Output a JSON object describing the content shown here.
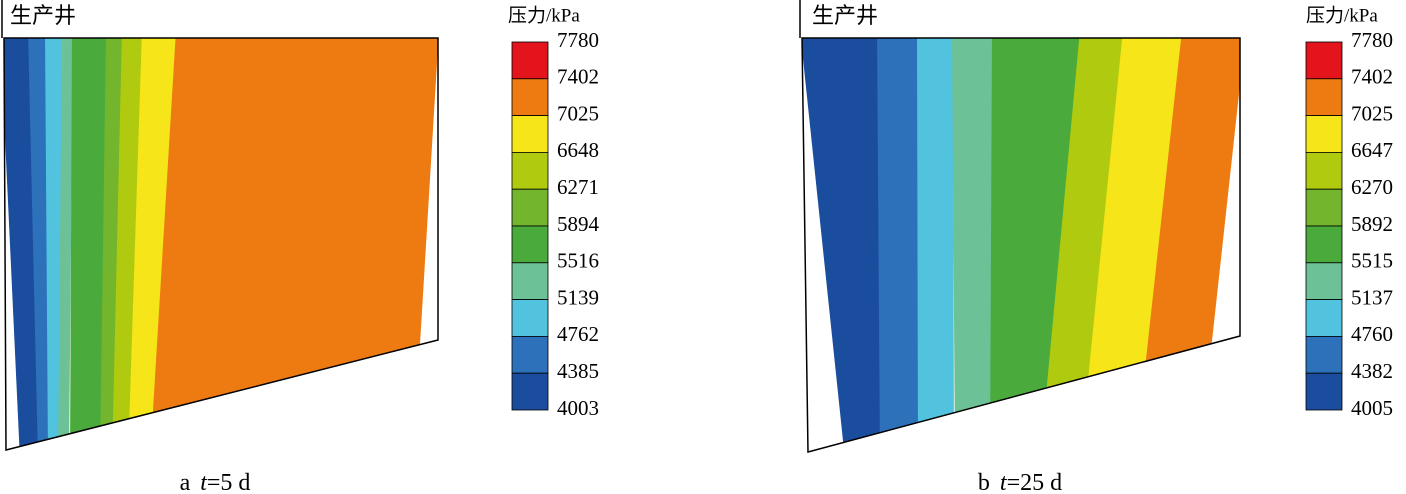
{
  "panels": [
    {
      "well_label": "生产井",
      "unit": "压力/kPa",
      "colorbar": {
        "labels": [
          7780,
          7402,
          7025,
          6648,
          6271,
          5894,
          5516,
          5139,
          4762,
          4385,
          4003
        ],
        "colors": [
          "#e3141c",
          "#ee7b12",
          "#f6e619",
          "#b0cb0f",
          "#73b52c",
          "#4aab3c",
          "#6cc196",
          "#52c3df",
          "#2c71b9",
          "#1b4d9e"
        ]
      },
      "caption": {
        "letter": "a",
        "variable": "t",
        "value": "=5 d"
      }
    },
    {
      "well_label": "生产井",
      "unit": "压力/kPa",
      "colorbar": {
        "labels": [
          7780,
          7402,
          7025,
          6647,
          6270,
          5892,
          5515,
          5137,
          4760,
          4382,
          4005
        ],
        "colors": [
          "#e3141c",
          "#ee7b12",
          "#f6e619",
          "#b0cb0f",
          "#73b52c",
          "#4aab3c",
          "#6cc196",
          "#52c3df",
          "#2c71b9",
          "#1b4d9e"
        ]
      },
      "caption": {
        "letter": "b",
        "variable": "t",
        "value": "=25 d"
      }
    }
  ]
}
